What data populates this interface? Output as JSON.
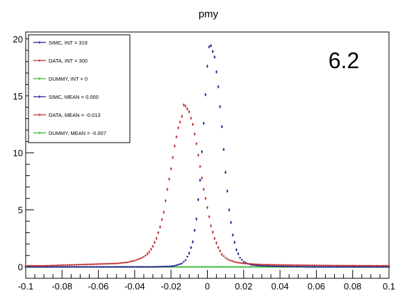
{
  "chart_data": {
    "type": "scatter",
    "title": "pmy",
    "annotation": "6.2",
    "xlabel": "",
    "ylabel": "",
    "xlim": [
      -0.1,
      0.1
    ],
    "ylim": [
      -1.0,
      20.6
    ],
    "xticks": [
      -0.1,
      -0.08,
      -0.06,
      -0.04,
      -0.02,
      0,
      0.02,
      0.04,
      0.06,
      0.08,
      0.1
    ],
    "xtick_labels": [
      "-0.1",
      "-0.08",
      "-0.06",
      "-0.04",
      "-0.02",
      "0",
      "0.02",
      "0.04",
      "0.06",
      "0.08",
      "0.1"
    ],
    "yticks": [
      0,
      5,
      10,
      15,
      20
    ],
    "ytick_labels": [
      "0",
      "5",
      "10",
      "15",
      "20"
    ],
    "legend_position": "top-left",
    "legend": [
      {
        "label": "SIMC, INT = 319",
        "color": "#1a1a8c"
      },
      {
        "label": "DATA, INT = 300",
        "color": "#c0282a"
      },
      {
        "label": "DUMMY, INT = 0",
        "color": "#2fb52f"
      },
      {
        "label": "SIMC, MEAN = 0.000",
        "color": "#1a1a8c"
      },
      {
        "label": "DATA, MEAN = -0.013",
        "color": "#c0282a"
      },
      {
        "label": "DUMMY, MEAN = -0.007",
        "color": "#2fb52f"
      }
    ],
    "series": [
      {
        "color": "#1a1a8c",
        "points": [
          [
            -0.1,
            0.0
          ],
          [
            -0.06,
            0.0
          ],
          [
            -0.03,
            0.0
          ],
          [
            -0.02,
            0.05
          ],
          [
            -0.018,
            0.1
          ],
          [
            -0.016,
            0.2
          ],
          [
            -0.014,
            0.3
          ],
          [
            -0.012,
            0.6
          ],
          [
            -0.01,
            1.2
          ],
          [
            -0.008,
            2.2
          ],
          [
            -0.006,
            4.2
          ],
          [
            -0.004,
            7.6
          ],
          [
            -0.002,
            12.6
          ],
          [
            0.0,
            17.6
          ],
          [
            0.001,
            19.3
          ],
          [
            0.002,
            19.4
          ],
          [
            0.004,
            18.4
          ],
          [
            0.006,
            15.8
          ],
          [
            0.008,
            12.3
          ],
          [
            0.01,
            8.3
          ],
          [
            0.012,
            5.0
          ],
          [
            0.014,
            2.8
          ],
          [
            0.016,
            1.5
          ],
          [
            0.018,
            0.8
          ],
          [
            0.02,
            0.45
          ],
          [
            0.022,
            0.3
          ],
          [
            0.024,
            0.2
          ],
          [
            0.026,
            0.15
          ],
          [
            0.03,
            0.1
          ],
          [
            0.04,
            0.05
          ],
          [
            0.06,
            0.0
          ],
          [
            0.1,
            0.0
          ]
        ]
      },
      {
        "color": "#c0282a",
        "points": [
          [
            -0.1,
            0.1
          ],
          [
            -0.09,
            0.1
          ],
          [
            -0.08,
            0.15
          ],
          [
            -0.07,
            0.2
          ],
          [
            -0.06,
            0.25
          ],
          [
            -0.05,
            0.3
          ],
          [
            -0.044,
            0.4
          ],
          [
            -0.04,
            0.55
          ],
          [
            -0.036,
            0.8
          ],
          [
            -0.034,
            1.0
          ],
          [
            -0.032,
            1.3
          ],
          [
            -0.03,
            1.8
          ],
          [
            -0.028,
            2.5
          ],
          [
            -0.026,
            3.5
          ],
          [
            -0.024,
            4.8
          ],
          [
            -0.022,
            6.8
          ],
          [
            -0.02,
            8.6
          ],
          [
            -0.018,
            10.6
          ],
          [
            -0.016,
            12.2
          ],
          [
            -0.014,
            13.2
          ],
          [
            -0.013,
            14.2
          ],
          [
            -0.012,
            14.1
          ],
          [
            -0.01,
            13.6
          ],
          [
            -0.008,
            12.5
          ],
          [
            -0.006,
            10.8
          ],
          [
            -0.004,
            8.8
          ],
          [
            -0.002,
            6.8
          ],
          [
            0.0,
            5.2
          ],
          [
            0.002,
            3.6
          ],
          [
            0.004,
            2.5
          ],
          [
            0.006,
            1.7
          ],
          [
            0.008,
            1.1
          ],
          [
            0.01,
            0.8
          ],
          [
            0.012,
            0.6
          ],
          [
            0.014,
            0.5
          ],
          [
            0.016,
            0.4
          ],
          [
            0.02,
            0.3
          ],
          [
            0.03,
            0.2
          ],
          [
            0.05,
            0.15
          ],
          [
            0.07,
            0.12
          ],
          [
            0.1,
            0.1
          ]
        ]
      },
      {
        "color": "#2fb52f",
        "points": [
          [
            -0.1,
            0.0
          ],
          [
            -0.08,
            0.0
          ],
          [
            -0.06,
            0.0
          ],
          [
            -0.04,
            0.0
          ],
          [
            -0.02,
            0.0
          ],
          [
            0.0,
            0.0
          ],
          [
            0.02,
            0.0
          ],
          [
            0.04,
            0.0
          ],
          [
            0.06,
            0.0
          ],
          [
            0.08,
            0.0
          ],
          [
            0.1,
            0.0
          ]
        ]
      }
    ]
  }
}
